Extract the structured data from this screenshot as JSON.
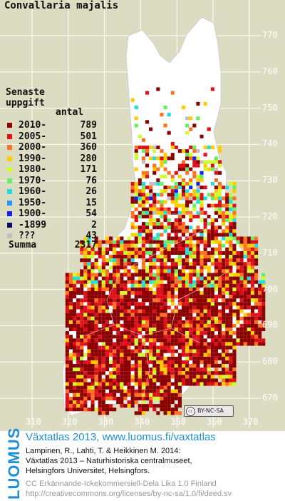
{
  "map_title": "Convallaria majalis",
  "legend": {
    "heading_line1": "Senaste",
    "heading_line2": "uppgift",
    "count_header": "antal",
    "rows": [
      {
        "label": "2010-",
        "count": "789",
        "color": "#8b0000"
      },
      {
        "label": "2005-",
        "count": "501",
        "color": "#e0101a"
      },
      {
        "label": "2000-",
        "count": "360",
        "color": "#ff7020"
      },
      {
        "label": "1990-",
        "count": "280",
        "color": "#ffcc00"
      },
      {
        "label": "1980-",
        "count": "171",
        "color": "#ccff33"
      },
      {
        "label": "1970-",
        "count": "76",
        "color": "#66ee66"
      },
      {
        "label": "1960-",
        "count": "26",
        "color": "#22dddd"
      },
      {
        "label": "1950-",
        "count": "15",
        "color": "#2299ff"
      },
      {
        "label": "1900-",
        "count": "54",
        "color": "#1122ee"
      },
      {
        "label": "-1899",
        "count": "2",
        "color": "#0a0a66"
      },
      {
        "label": "???",
        "count": "43",
        "color": "#c0c0c0"
      }
    ],
    "total_label": "Summa",
    "total_count": "2317"
  },
  "axis": {
    "y_ticks": [
      "770",
      "760",
      "750",
      "740",
      "730",
      "720",
      "710",
      "700",
      "690",
      "680",
      "670"
    ],
    "x_ticks": [
      "310",
      "320",
      "330",
      "340",
      "350",
      "360",
      "370"
    ]
  },
  "license_badge": {
    "cc": "cc",
    "text": "BY-NC-SA"
  },
  "footer": {
    "brand": "LUOMUS",
    "title": "Växtatlas 2013, www.luomus.fi/vaxtatlas",
    "citation": [
      "Lampinen, R., Lahti, T. & Heikkinen M. 2014:",
      "Växtatlas 2013 – Naturhistoriska centralmuseet,",
      "Helsingfors Universitet, Helsingfors."
    ],
    "license": [
      "CC Erkännande-Ickekommersiell-Dela Lika 1.0 Finland",
      "http://creativecommons.org/licenses/by-nc-sa/1.0/fi/deed.sv"
    ]
  }
}
